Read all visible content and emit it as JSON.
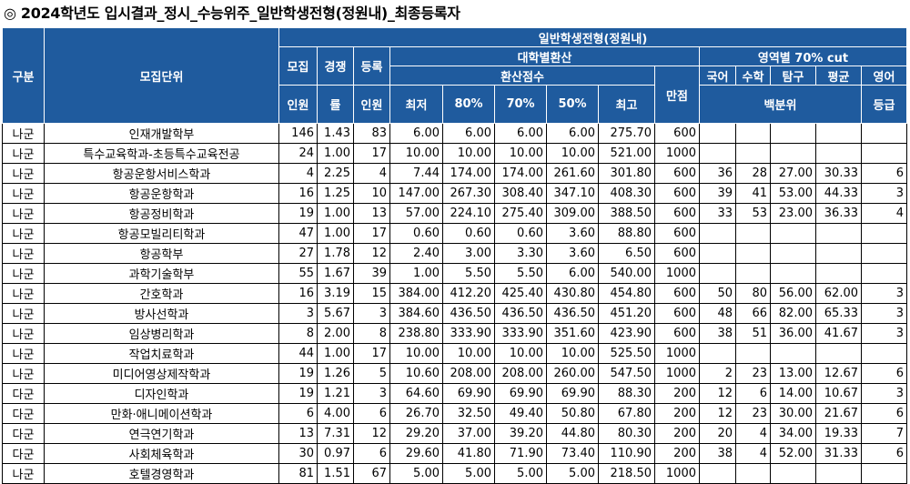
{
  "title": "◎ 2024학년도 입시결과_정시_수능위주_일반학생전형(정원내)_최종등록자",
  "header": {
    "group": "구분",
    "unit": "모집단위",
    "quota_1": "모집",
    "quota_2": "인원",
    "rate_1": "경쟁",
    "rate_2": "률",
    "reg_1": "등록",
    "reg_2": "인원",
    "admission_type": "일반학생전형(정원내)",
    "univ_convert": "대학별환산",
    "conv_score": "환산점수",
    "full_score": "만점",
    "min": "최저",
    "p80": "80%",
    "p70": "70%",
    "p50": "50%",
    "max": "최고",
    "area_cut": "영역별 70% cut",
    "korean": "국어",
    "math": "수학",
    "inquiry": "탐구",
    "avg": "평균",
    "english": "영어",
    "percentile": "백분위",
    "grade": "등급"
  },
  "rows": [
    {
      "group": "나군",
      "unit": "인재개발학부",
      "quota": "146",
      "rate": "1.43",
      "reg": "83",
      "min": "6.00",
      "p80": "6.00",
      "p70": "6.00",
      "p50": "6.00",
      "max": "275.70",
      "full": "600",
      "kor": "",
      "math": "",
      "inq": "",
      "avg": "",
      "eng": ""
    },
    {
      "group": "나군",
      "unit": "특수교육학과-초등특수교육전공",
      "quota": "24",
      "rate": "1.00",
      "reg": "17",
      "min": "10.00",
      "p80": "10.00",
      "p70": "10.00",
      "p50": "10.00",
      "max": "521.00",
      "full": "1000",
      "kor": "",
      "math": "",
      "inq": "",
      "avg": "",
      "eng": ""
    },
    {
      "group": "나군",
      "unit": "항공운항서비스학과",
      "quota": "4",
      "rate": "2.25",
      "reg": "4",
      "min": "7.44",
      "p80": "174.00",
      "p70": "174.00",
      "p50": "261.60",
      "max": "301.80",
      "full": "600",
      "kor": "36",
      "math": "28",
      "inq": "27.00",
      "avg": "30.33",
      "eng": "6"
    },
    {
      "group": "나군",
      "unit": "항공운항학과",
      "quota": "16",
      "rate": "1.25",
      "reg": "10",
      "min": "147.00",
      "p80": "267.30",
      "p70": "308.40",
      "p50": "347.10",
      "max": "408.30",
      "full": "600",
      "kor": "39",
      "math": "41",
      "inq": "53.00",
      "avg": "44.33",
      "eng": "3"
    },
    {
      "group": "나군",
      "unit": "항공정비학과",
      "quota": "19",
      "rate": "1.00",
      "reg": "13",
      "min": "57.00",
      "p80": "224.10",
      "p70": "275.40",
      "p50": "309.00",
      "max": "388.50",
      "full": "600",
      "kor": "33",
      "math": "53",
      "inq": "23.00",
      "avg": "36.33",
      "eng": "4"
    },
    {
      "group": "나군",
      "unit": "항공모빌리티학과",
      "quota": "47",
      "rate": "1.00",
      "reg": "17",
      "min": "0.60",
      "p80": "0.60",
      "p70": "0.60",
      "p50": "3.60",
      "max": "88.80",
      "full": "600",
      "kor": "",
      "math": "",
      "inq": "",
      "avg": "",
      "eng": ""
    },
    {
      "group": "나군",
      "unit": "항공학부",
      "quota": "27",
      "rate": "1.78",
      "reg": "12",
      "min": "2.40",
      "p80": "3.00",
      "p70": "3.30",
      "p50": "3.60",
      "max": "6.50",
      "full": "600",
      "kor": "",
      "math": "",
      "inq": "",
      "avg": "",
      "eng": ""
    },
    {
      "group": "나군",
      "unit": "과학기술학부",
      "quota": "55",
      "rate": "1.67",
      "reg": "39",
      "min": "1.00",
      "p80": "5.50",
      "p70": "5.50",
      "p50": "6.00",
      "max": "540.00",
      "full": "1000",
      "kor": "",
      "math": "",
      "inq": "",
      "avg": "",
      "eng": ""
    },
    {
      "group": "나군",
      "unit": "간호학과",
      "quota": "16",
      "rate": "3.19",
      "reg": "15",
      "min": "384.00",
      "p80": "412.20",
      "p70": "425.40",
      "p50": "430.80",
      "max": "454.80",
      "full": "600",
      "kor": "50",
      "math": "80",
      "inq": "56.00",
      "avg": "62.00",
      "eng": "3"
    },
    {
      "group": "나군",
      "unit": "방사선학과",
      "quota": "3",
      "rate": "5.67",
      "reg": "3",
      "min": "384.60",
      "p80": "436.50",
      "p70": "436.50",
      "p50": "436.50",
      "max": "451.20",
      "full": "600",
      "kor": "48",
      "math": "66",
      "inq": "82.00",
      "avg": "65.33",
      "eng": "3"
    },
    {
      "group": "나군",
      "unit": "임상병리학과",
      "quota": "8",
      "rate": "2.00",
      "reg": "8",
      "min": "238.80",
      "p80": "333.90",
      "p70": "333.90",
      "p50": "351.60",
      "max": "423.90",
      "full": "600",
      "kor": "38",
      "math": "51",
      "inq": "36.00",
      "avg": "41.67",
      "eng": "3"
    },
    {
      "group": "나군",
      "unit": "작업치료학과",
      "quota": "44",
      "rate": "1.00",
      "reg": "17",
      "min": "10.00",
      "p80": "10.00",
      "p70": "10.00",
      "p50": "10.00",
      "max": "525.50",
      "full": "1000",
      "kor": "",
      "math": "",
      "inq": "",
      "avg": "",
      "eng": ""
    },
    {
      "group": "나군",
      "unit": "미디어영상제작학과",
      "quota": "19",
      "rate": "1.26",
      "reg": "5",
      "min": "10.60",
      "p80": "208.00",
      "p70": "208.00",
      "p50": "260.00",
      "max": "547.50",
      "full": "1000",
      "kor": "2",
      "math": "23",
      "inq": "13.00",
      "avg": "12.67",
      "eng": "6"
    },
    {
      "group": "다군",
      "unit": "디자인학과",
      "quota": "19",
      "rate": "1.21",
      "reg": "3",
      "min": "64.60",
      "p80": "69.90",
      "p70": "69.90",
      "p50": "69.90",
      "max": "88.30",
      "full": "200",
      "kor": "12",
      "math": "6",
      "inq": "14.00",
      "avg": "10.67",
      "eng": "3"
    },
    {
      "group": "다군",
      "unit": "만화·애니메이션학과",
      "quota": "6",
      "rate": "4.00",
      "reg": "6",
      "min": "26.70",
      "p80": "32.50",
      "p70": "49.40",
      "p50": "50.80",
      "max": "67.80",
      "full": "200",
      "kor": "12",
      "math": "23",
      "inq": "30.00",
      "avg": "21.67",
      "eng": "6"
    },
    {
      "group": "다군",
      "unit": "연극연기학과",
      "quota": "13",
      "rate": "7.31",
      "reg": "12",
      "min": "29.20",
      "p80": "37.00",
      "p70": "39.20",
      "p50": "44.80",
      "max": "80.30",
      "full": "200",
      "kor": "20",
      "math": "4",
      "inq": "34.00",
      "avg": "19.33",
      "eng": "7"
    },
    {
      "group": "다군",
      "unit": "사회체육학과",
      "quota": "30",
      "rate": "0.97",
      "reg": "6",
      "min": "29.60",
      "p80": "41.80",
      "p70": "71.90",
      "p50": "73.40",
      "max": "110.90",
      "full": "200",
      "kor": "38",
      "math": "4",
      "inq": "52.00",
      "avg": "31.33",
      "eng": "6"
    },
    {
      "group": "나군",
      "unit": "호텔경영학과",
      "quota": "81",
      "rate": "1.51",
      "reg": "67",
      "min": "5.00",
      "p80": "5.00",
      "p70": "5.00",
      "p50": "5.00",
      "max": "218.50",
      "full": "1000",
      "kor": "",
      "math": "",
      "inq": "",
      "avg": "",
      "eng": ""
    }
  ]
}
